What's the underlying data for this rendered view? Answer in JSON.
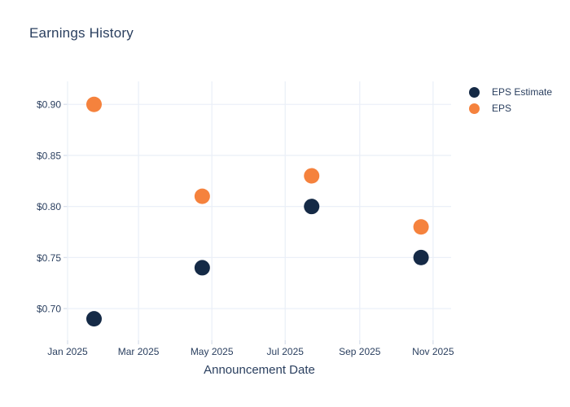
{
  "chart_data": {
    "type": "scatter",
    "title": "Earnings History",
    "xlabel": "Announcement Date",
    "ylabel": "",
    "x": [
      "2025-01-23",
      "2025-04-23",
      "2025-07-23",
      "2025-10-22"
    ],
    "series": [
      {
        "name": "EPS Estimate",
        "color": "#152a46",
        "values": [
          0.69,
          0.74,
          0.8,
          0.75
        ]
      },
      {
        "name": "EPS",
        "color": "#f5823d",
        "values": [
          0.9,
          0.81,
          0.83,
          0.78
        ]
      }
    ],
    "x_ticks": [
      {
        "date": "2025-01-01",
        "label": "Jan 2025"
      },
      {
        "date": "2025-03-01",
        "label": "Mar 2025"
      },
      {
        "date": "2025-05-01",
        "label": "May 2025"
      },
      {
        "date": "2025-07-01",
        "label": "Jul 2025"
      },
      {
        "date": "2025-09-01",
        "label": "Sep 2025"
      },
      {
        "date": "2025-11-01",
        "label": "Nov 2025"
      }
    ],
    "y_ticks": [
      {
        "value": 0.7,
        "label": "$0.70"
      },
      {
        "value": 0.75,
        "label": "$0.75"
      },
      {
        "value": 0.8,
        "label": "$0.80"
      },
      {
        "value": 0.85,
        "label": "$0.85"
      },
      {
        "value": 0.9,
        "label": "$0.90"
      }
    ],
    "x_range": [
      "2025-01-01",
      "2025-11-16"
    ],
    "y_range": [
      0.669,
      0.9225
    ],
    "grid": true,
    "legend_position": "right",
    "marker_radius": 9.5,
    "colors": {
      "grid": "#ebf0f8",
      "tick": "#d9e0ec",
      "text": "#2a3f5f",
      "background": "#ffffff"
    }
  }
}
